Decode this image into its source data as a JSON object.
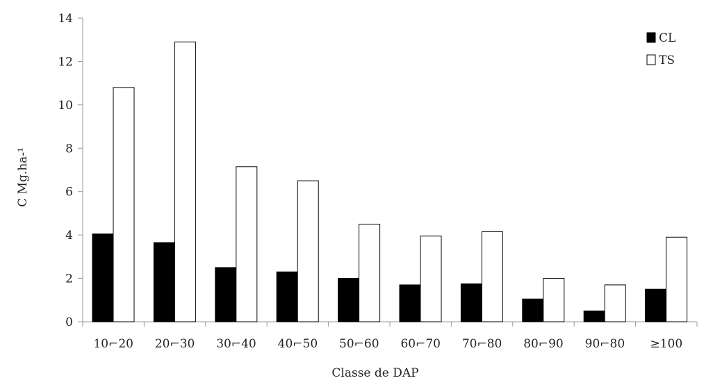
{
  "chart_data": {
    "type": "bar",
    "categories": [
      "10⌐20",
      "20⌐30",
      "30⌐40",
      "40⌐50",
      "50⌐60",
      "60⌐70",
      "70⌐80",
      "80⌐90",
      "90⌐80",
      "≥100"
    ],
    "series": [
      {
        "name": "CL",
        "color": "#000000",
        "values": [
          4.05,
          3.65,
          2.5,
          2.3,
          2.0,
          1.7,
          1.75,
          1.05,
          0.5,
          1.5
        ]
      },
      {
        "name": "TS",
        "color": "#ffffff",
        "values": [
          10.8,
          12.9,
          7.15,
          6.5,
          4.5,
          3.95,
          4.15,
          2.0,
          1.7,
          3.9
        ]
      }
    ],
    "title": "",
    "xlabel": "Classe de DAP",
    "ylabel": "C Mg.ha-¹",
    "ylim": [
      0,
      14
    ],
    "yticks": [
      "0",
      "2",
      "4",
      "6",
      "8",
      "10",
      "12",
      "14"
    ],
    "grid": false,
    "legend_position": "top-right"
  }
}
